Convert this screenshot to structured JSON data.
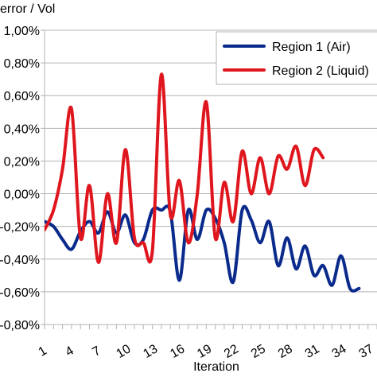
{
  "chart_data": {
    "type": "line",
    "ylabel": "error / Vol",
    "xlabel": "Iteration",
    "ylim": [
      -0.8,
      1.0
    ],
    "y_ticks": [
      "-0,80%",
      "-0,60%",
      "-0,40%",
      "-0,20%",
      "0,00%",
      "0,20%",
      "0,40%",
      "0,60%",
      "0,80%",
      "1,00%"
    ],
    "x_ticks": [
      "1",
      "4",
      "7",
      "10",
      "13",
      "16",
      "19",
      "22",
      "25",
      "28",
      "31",
      "34",
      "37"
    ],
    "grid": "horizontal",
    "legend_position": "top-right",
    "series": [
      {
        "name": "Region 1 (Air)",
        "color": "#0a2a8c",
        "points": [
          [
            1,
            -0.17
          ],
          [
            2,
            -0.2
          ],
          [
            3,
            -0.28
          ],
          [
            4,
            -0.34
          ],
          [
            5,
            -0.23
          ],
          [
            6,
            -0.17
          ],
          [
            7,
            -0.24
          ],
          [
            8,
            -0.11
          ],
          [
            9,
            -0.24
          ],
          [
            10,
            -0.13
          ],
          [
            11,
            -0.3
          ],
          [
            12,
            -0.28
          ],
          [
            13,
            -0.1
          ],
          [
            14,
            -0.1
          ],
          [
            15,
            -0.11
          ],
          [
            16,
            -0.53
          ],
          [
            17,
            -0.1
          ],
          [
            18,
            -0.28
          ],
          [
            19,
            -0.1
          ],
          [
            20,
            -0.15
          ],
          [
            21,
            -0.3
          ],
          [
            22,
            -0.54
          ],
          [
            23,
            -0.1
          ],
          [
            24,
            -0.16
          ],
          [
            25,
            -0.3
          ],
          [
            26,
            -0.17
          ],
          [
            27,
            -0.44
          ],
          [
            28,
            -0.27
          ],
          [
            29,
            -0.46
          ],
          [
            30,
            -0.32
          ],
          [
            31,
            -0.5
          ],
          [
            32,
            -0.44
          ],
          [
            33,
            -0.56
          ],
          [
            34,
            -0.38
          ],
          [
            35,
            -0.58
          ],
          [
            36,
            -0.58
          ]
        ]
      },
      {
        "name": "Region 2 (Liquid)",
        "color": "#e0161e",
        "points": [
          [
            1,
            -0.22
          ],
          [
            2,
            -0.1
          ],
          [
            3,
            0.15
          ],
          [
            4,
            0.52
          ],
          [
            5,
            -0.27
          ],
          [
            6,
            0.05
          ],
          [
            7,
            -0.42
          ],
          [
            8,
            0.0
          ],
          [
            9,
            -0.3
          ],
          [
            10,
            0.27
          ],
          [
            11,
            -0.27
          ],
          [
            12,
            -0.3
          ],
          [
            13,
            -0.35
          ],
          [
            14,
            0.73
          ],
          [
            15,
            -0.13
          ],
          [
            16,
            0.08
          ],
          [
            17,
            -0.3
          ],
          [
            18,
            0.0
          ],
          [
            19,
            0.56
          ],
          [
            20,
            -0.27
          ],
          [
            21,
            0.07
          ],
          [
            22,
            -0.17
          ],
          [
            23,
            0.26
          ],
          [
            24,
            0.0
          ],
          [
            25,
            0.22
          ],
          [
            26,
            0.0
          ],
          [
            27,
            0.23
          ],
          [
            28,
            0.15
          ],
          [
            29,
            0.29
          ],
          [
            30,
            0.05
          ],
          [
            31,
            0.27
          ],
          [
            32,
            0.22
          ]
        ]
      }
    ]
  }
}
